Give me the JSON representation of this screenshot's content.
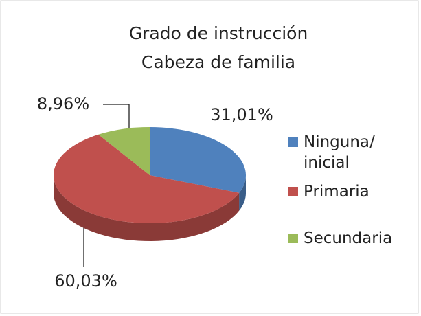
{
  "chart_data": {
    "type": "pie",
    "title": "Grado de instrucción",
    "subtitle": "Cabeza de familia",
    "categories": [
      "Ninguna/ inicial",
      "Primaria",
      "Secundaria"
    ],
    "values": [
      31.01,
      60.03,
      8.96
    ],
    "value_labels": [
      "31,01%",
      "60,03%",
      "8,96%"
    ],
    "colors": [
      "#4f81bd",
      "#c0504d",
      "#9bbb59"
    ],
    "legend": "right"
  }
}
